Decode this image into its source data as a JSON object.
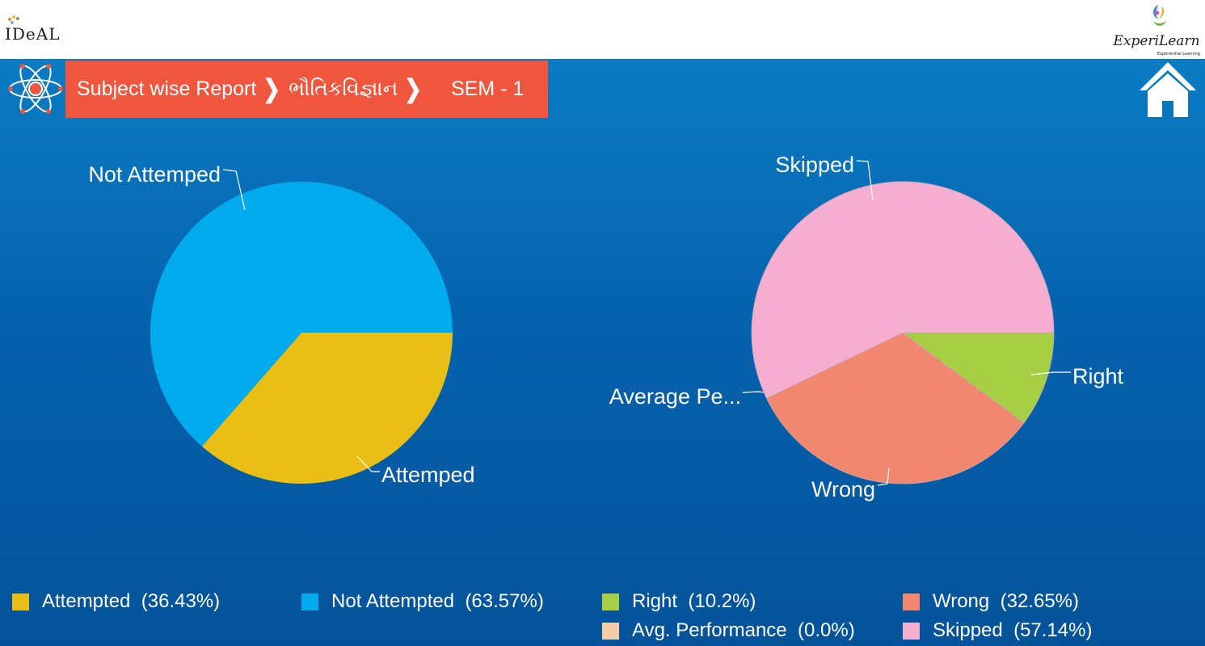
{
  "header": {
    "ideal_logo_text": "IDeAL",
    "experilearn_logo_text": "ExperiLearn",
    "experilearn_tagline": "Experiential Learning"
  },
  "breadcrumb": {
    "items": [
      "Subject wise Report",
      "ભૌતિકવિજ્ઞાન",
      "SEM - 1"
    ],
    "separator": "❯"
  },
  "icons": {
    "atom": "atom-icon",
    "home": "home-icon",
    "breadcrumb_separator": "chevron-right-icon"
  },
  "colors": {
    "header_bg": "#ffffff",
    "main_bg_top": "#0a7cc4",
    "main_bg_bottom": "#03539a",
    "breadcrumb_bg": "#f0553d",
    "attempted": "#eabf15",
    "not_attempted": "#02aaee",
    "right": "#a7cf44",
    "wrong": "#f0876e",
    "avg_performance": "#f6cda6",
    "skipped": "#f5aecf"
  },
  "chart_data": [
    {
      "type": "pie",
      "title": "",
      "slices": [
        {
          "label": "Attemped",
          "legend": "Attempted",
          "value": 36.43,
          "value_text": "(36.43%)",
          "color": "#eabf15"
        },
        {
          "label": "Not Attemped",
          "legend": "Not Attempted",
          "value": 63.57,
          "value_text": "(63.57%)",
          "color": "#02aaee"
        }
      ]
    },
    {
      "type": "pie",
      "title": "",
      "slices": [
        {
          "label": "Right",
          "legend": "Right",
          "value": 10.2,
          "value_text": "(10.2%)",
          "color": "#a7cf44"
        },
        {
          "label": "Wrong",
          "legend": "Wrong",
          "value": 32.65,
          "value_text": "(32.65%)",
          "color": "#f0876e"
        },
        {
          "label": "Average Pe...",
          "legend": "Avg. Performance",
          "value": 0.0,
          "value_text": "(0.0%)",
          "color": "#f6cda6"
        },
        {
          "label": "Skipped",
          "legend": "Skipped",
          "value": 57.14,
          "value_text": "(57.14%)",
          "color": "#f5aecf"
        }
      ]
    }
  ]
}
